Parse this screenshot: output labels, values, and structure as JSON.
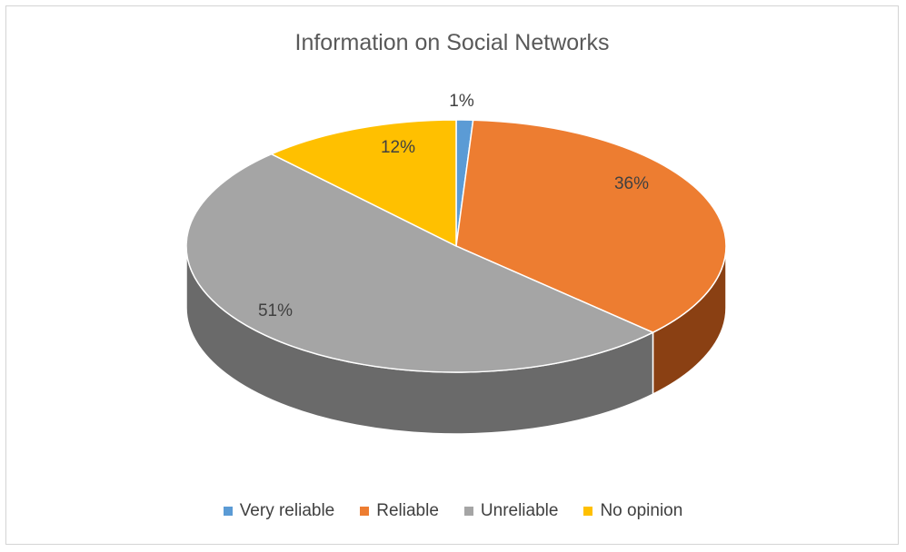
{
  "chart_data": {
    "type": "pie",
    "title": "Information on Social Networks",
    "categories": [
      "Very reliable",
      "Reliable",
      "Unreliable",
      "No opinion"
    ],
    "values": [
      1,
      36,
      51,
      12
    ],
    "data_labels": [
      "1%",
      "36%",
      "51%",
      "12%"
    ],
    "colors": [
      "#5b9bd5",
      "#ed7d31",
      "#a5a5a5",
      "#ffc000"
    ],
    "side_colors": [
      "#2e5a82",
      "#8a4013",
      "#6a6a6a",
      "#9a7400"
    ],
    "legend_position": "bottom",
    "style": "3d-pie"
  }
}
